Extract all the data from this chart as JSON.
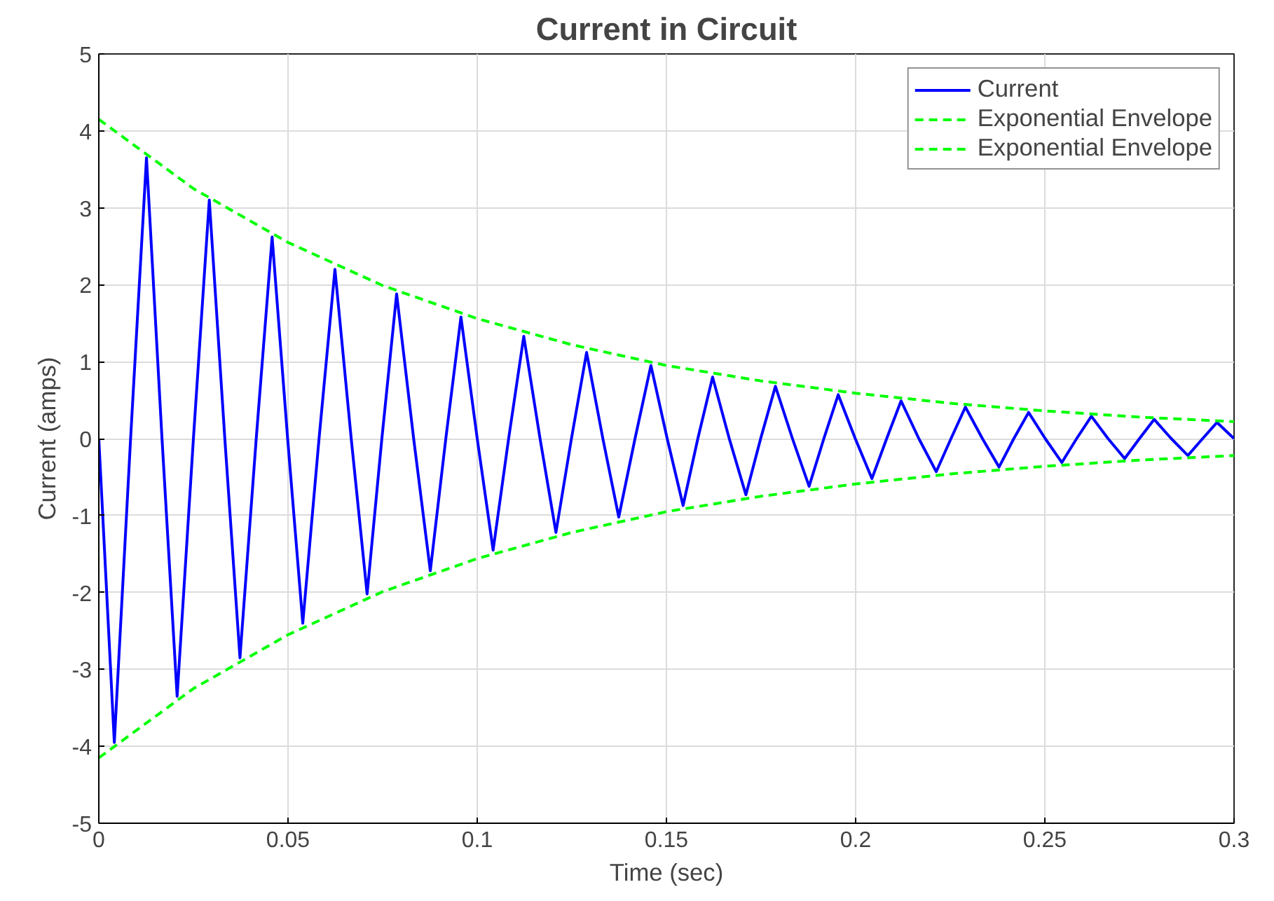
{
  "chart_data": {
    "type": "line",
    "title": "Current in Circuit",
    "xlabel": "Time (sec)",
    "ylabel": "Current (amps)",
    "xlim": [
      0,
      0.3
    ],
    "ylim": [
      -5,
      5
    ],
    "xticks": [
      0,
      0.05,
      0.1,
      0.15,
      0.2,
      0.25,
      0.3
    ],
    "yticks": [
      -5,
      -4,
      -3,
      -2,
      -1,
      0,
      1,
      2,
      3,
      4,
      5
    ],
    "grid": true,
    "legend": "top right",
    "marker": "none",
    "series": [
      {
        "name": "Current",
        "color": "#0000ff",
        "line_style": "solid",
        "x": [
          0,
          0.0041,
          0.0084,
          0.0126,
          0.0167,
          0.0207,
          0.025,
          0.0292,
          0.0333,
          0.0373,
          0.0416,
          0.0458,
          0.0499,
          0.0539,
          0.0582,
          0.0624,
          0.0667,
          0.0709,
          0.0748,
          0.0787,
          0.0832,
          0.0876,
          0.0917,
          0.0957,
          0.1,
          0.1042,
          0.1083,
          0.1123,
          0.1166,
          0.1208,
          0.1249,
          0.1289,
          0.1332,
          0.1374,
          0.1417,
          0.1459,
          0.1502,
          0.1544,
          0.1583,
          0.1622,
          0.1666,
          0.171,
          0.1749,
          0.1788,
          0.1833,
          0.1877,
          0.1916,
          0.1954,
          0.1999,
          0.2043,
          0.2082,
          0.212,
          0.2167,
          0.2213,
          0.2252,
          0.229,
          0.2335,
          0.2379,
          0.2418,
          0.2457,
          0.2501,
          0.2545,
          0.2584,
          0.2623,
          0.2667,
          0.2711,
          0.275,
          0.2789,
          0.2834,
          0.2878,
          0.2917,
          0.2955,
          0.3
        ],
        "values": [
          0,
          -3.95,
          0,
          3.65,
          0,
          -3.35,
          0,
          3.1,
          0,
          -2.85,
          0,
          2.62,
          0,
          -2.4,
          0,
          2.2,
          0,
          -2.02,
          0,
          1.88,
          0,
          -1.72,
          0,
          1.58,
          0,
          -1.45,
          0,
          1.33,
          0,
          -1.22,
          0,
          1.12,
          0,
          -1.02,
          0,
          0.95,
          0,
          -0.87,
          0,
          0.8,
          0,
          -0.73,
          0,
          0.68,
          0,
          -0.62,
          0,
          0.57,
          0,
          -0.52,
          0,
          0.49,
          0,
          -0.43,
          0,
          0.41,
          0,
          -0.37,
          0,
          0.34,
          0,
          -0.31,
          0,
          0.29,
          0,
          -0.26,
          0,
          0.25,
          0,
          -0.22,
          0,
          0.21,
          0
        ]
      },
      {
        "name": "Exponential Envelope",
        "color": "#00ff00",
        "line_style": "dashed",
        "x": [
          0,
          0.025,
          0.05,
          0.075,
          0.1,
          0.125,
          0.15,
          0.175,
          0.2,
          0.225,
          0.25,
          0.275,
          0.3
        ],
        "values": [
          4.15,
          3.25,
          2.55,
          1.99,
          1.56,
          1.22,
          0.95,
          0.75,
          0.59,
          0.46,
          0.36,
          0.28,
          0.22
        ]
      },
      {
        "name": "Exponential Envelope",
        "color": "#00ff00",
        "line_style": "dashed",
        "x": [
          0,
          0.025,
          0.05,
          0.075,
          0.1,
          0.125,
          0.15,
          0.175,
          0.2,
          0.225,
          0.25,
          0.275,
          0.3
        ],
        "values": [
          -4.15,
          -3.25,
          -2.55,
          -1.99,
          -1.56,
          -1.22,
          -0.95,
          -0.75,
          -0.59,
          -0.46,
          -0.36,
          -0.28,
          -0.22
        ]
      }
    ]
  }
}
